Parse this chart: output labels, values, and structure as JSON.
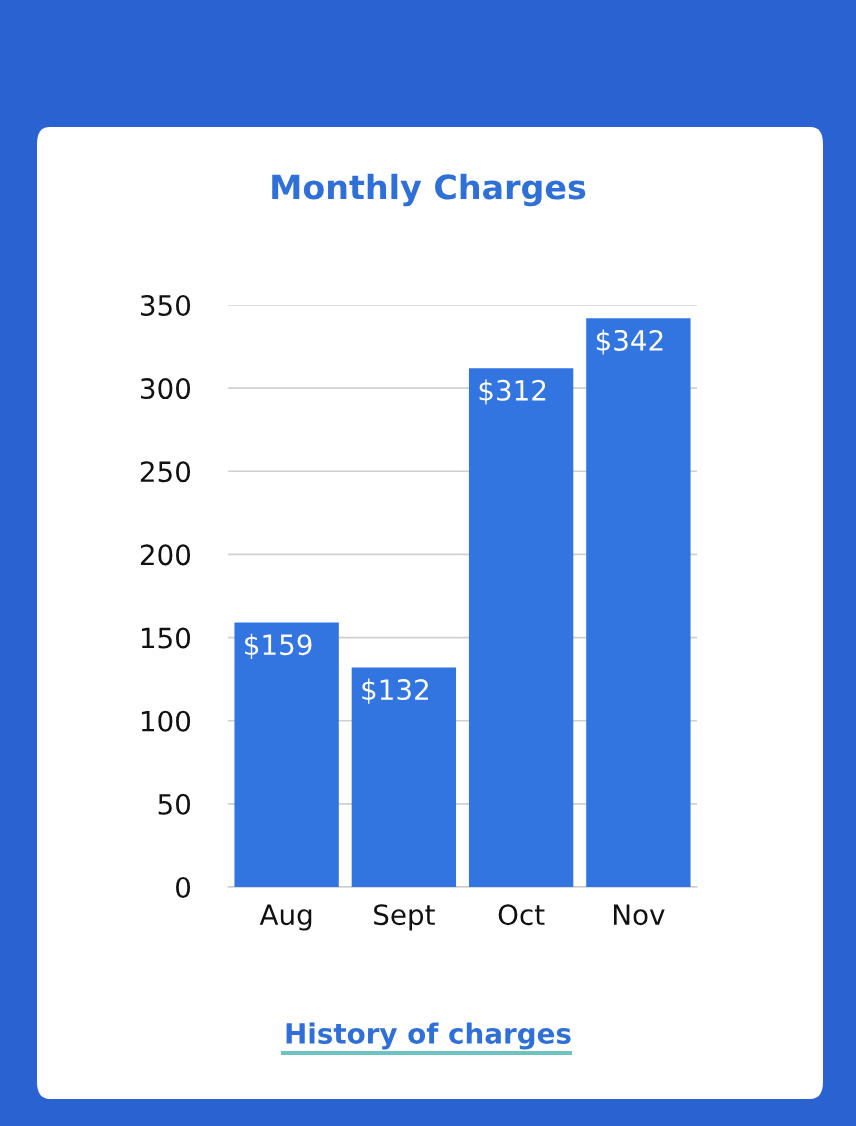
{
  "chart_data": {
    "type": "bar",
    "title": "Monthly Charges",
    "categories": [
      "Aug",
      "Sept",
      "Oct",
      "Nov"
    ],
    "values": [
      159,
      132,
      312,
      342
    ],
    "value_labels": [
      "$159",
      "$132",
      "$312",
      "$342"
    ],
    "color": "#3275e0",
    "ylim": [
      0,
      350
    ],
    "yticks": [
      0,
      50,
      100,
      150,
      200,
      250,
      300,
      350
    ],
    "grid": "y",
    "annotations": [
      "History of charges"
    ]
  }
}
